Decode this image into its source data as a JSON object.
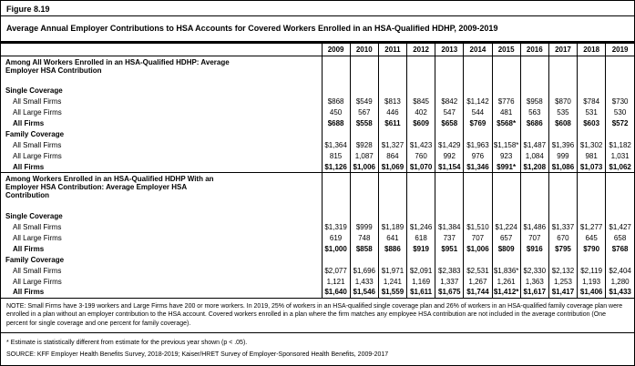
{
  "figure": {
    "label": "Figure 8.19",
    "title": "Average Annual Employer Contributions to HSA Accounts for Covered Workers Enrolled in an HSA-Qualified HDHP, 2009-2019"
  },
  "colors": {
    "text": "#000000",
    "border": "#000000",
    "background": "#ffffff"
  },
  "chart_data": {
    "type": "table",
    "title": "Average Annual Employer Contributions to HSA Accounts for Covered Workers Enrolled in an HSA-Qualified HDHP, 2009-2019",
    "columns": [
      "2009",
      "2010",
      "2011",
      "2012",
      "2013",
      "2014",
      "2015",
      "2016",
      "2017",
      "2018",
      "2019"
    ],
    "sections": [
      {
        "header": "Among All Workers Enrolled in an HSA-Qualified HDHP: Average Employer HSA Contribution",
        "groups": [
          {
            "label": "Single Coverage",
            "rows": [
              {
                "label": "All Small Firms",
                "bold": false,
                "values": [
                  "$868",
                  "$549",
                  "$813",
                  "$845",
                  "$842",
                  "$1,142",
                  "$776",
                  "$958",
                  "$870",
                  "$784",
                  "$730"
                ]
              },
              {
                "label": "All Large Firms",
                "bold": false,
                "values": [
                  "450",
                  "567",
                  "446",
                  "402",
                  "547",
                  "544",
                  "481",
                  "563",
                  "535",
                  "531",
                  "530"
                ]
              },
              {
                "label": "All Firms",
                "bold": true,
                "values": [
                  "$688",
                  "$558",
                  "$611",
                  "$609",
                  "$658",
                  "$769",
                  "$568*",
                  "$686",
                  "$608",
                  "$603",
                  "$572"
                ]
              }
            ]
          },
          {
            "label": "Family Coverage",
            "rows": [
              {
                "label": "All Small Firms",
                "bold": false,
                "values": [
                  "$1,364",
                  "$928",
                  "$1,327",
                  "$1,423",
                  "$1,429",
                  "$1,963",
                  "$1,158*",
                  "$1,487",
                  "$1,396",
                  "$1,302",
                  "$1,182"
                ]
              },
              {
                "label": "All Large Firms",
                "bold": false,
                "values": [
                  "815",
                  "1,087",
                  "864",
                  "760",
                  "992",
                  "976",
                  "923",
                  "1,084",
                  "999",
                  "981",
                  "1,031"
                ]
              },
              {
                "label": "All Firms",
                "bold": true,
                "values": [
                  "$1,126",
                  "$1,006",
                  "$1,069",
                  "$1,070",
                  "$1,154",
                  "$1,346",
                  "$991*",
                  "$1,208",
                  "$1,086",
                  "$1,073",
                  "$1,062"
                ]
              }
            ]
          }
        ]
      },
      {
        "header": "Among Workers Enrolled in an HSA-Qualified HDHP With an Employer HSA Contribution: Average Employer HSA Contribution",
        "groups": [
          {
            "label": "Single Coverage",
            "rows": [
              {
                "label": "All Small Firms",
                "bold": false,
                "values": [
                  "$1,319",
                  "$999",
                  "$1,189",
                  "$1,246",
                  "$1,384",
                  "$1,510",
                  "$1,224",
                  "$1,486",
                  "$1,337",
                  "$1,277",
                  "$1,427"
                ]
              },
              {
                "label": "All Large Firms",
                "bold": false,
                "values": [
                  "619",
                  "748",
                  "641",
                  "618",
                  "737",
                  "707",
                  "657",
                  "707",
                  "670",
                  "645",
                  "658"
                ]
              },
              {
                "label": "All Firms",
                "bold": true,
                "values": [
                  "$1,000",
                  "$858",
                  "$886",
                  "$919",
                  "$951",
                  "$1,006",
                  "$809",
                  "$916",
                  "$795",
                  "$790",
                  "$768"
                ]
              }
            ]
          },
          {
            "label": "Family Coverage",
            "rows": [
              {
                "label": "All Small Firms",
                "bold": false,
                "values": [
                  "$2,077",
                  "$1,696",
                  "$1,971",
                  "$2,091",
                  "$2,383",
                  "$2,531",
                  "$1,836*",
                  "$2,330",
                  "$2,132",
                  "$2,119",
                  "$2,404"
                ]
              },
              {
                "label": "All Large Firms",
                "bold": false,
                "values": [
                  "1,121",
                  "1,433",
                  "1,241",
                  "1,169",
                  "1,337",
                  "1,267",
                  "1,261",
                  "1,363",
                  "1,253",
                  "1,193",
                  "1,280"
                ]
              },
              {
                "label": "All Firms",
                "bold": true,
                "values": [
                  "$1,640",
                  "$1,546",
                  "$1,559",
                  "$1,611",
                  "$1,675",
                  "$1,744",
                  "$1,412*",
                  "$1,617",
                  "$1,417",
                  "$1,406",
                  "$1,433"
                ]
              }
            ]
          }
        ]
      }
    ]
  },
  "note": "NOTE: Small Firms have 3-199 workers and Large Firms have 200 or more workers. In 2019, 25% of workers in an HSA-qualified single coverage plan and 26% of workers in an HSA-qualified family coverage plan were enrolled in a plan without an employer contribution to the HSA account. Covered workers enrolled in a plan where the firm matches any employee HSA contribution are not included in the average contribution (One percent for single coverage and one percent for family coverage).",
  "footnote": "* Estimate is statistically different from estimate for the previous year shown (p < .05).",
  "source": "SOURCE: KFF Employer Health Benefits Survey, 2018-2019; Kaiser/HRET Survey of Employer-Sponsored Health Benefits, 2009-2017"
}
